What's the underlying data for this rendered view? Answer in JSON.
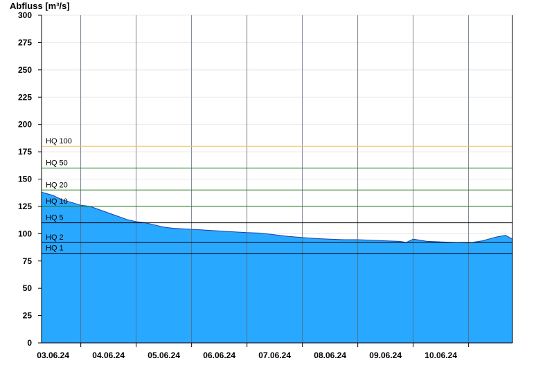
{
  "chart_data": {
    "type": "area",
    "ylabel": "Abfluss [m³/s]",
    "ylim": [
      0,
      300
    ],
    "yticks": [
      0,
      25,
      50,
      75,
      100,
      125,
      150,
      175,
      200,
      225,
      250,
      275,
      300
    ],
    "xlim": [
      "2024-06-02T07:00",
      "2024-06-10T19:00"
    ],
    "xtick_labels": [
      "03.06.24",
      "04.06.24",
      "05.06.24",
      "06.06.24",
      "07.06.24",
      "08.06.24",
      "09.06.24",
      "10.06.24"
    ],
    "grid": true,
    "fill_color": "#29a8ff",
    "line_color": "#1c3fa8",
    "series": [
      {
        "x": [
          "2024-06-02T07:00",
          "2024-06-02T12:00",
          "2024-06-02T16:00",
          "2024-06-02T21:00",
          "2024-06-03T00:00",
          "2024-06-03T04:00",
          "2024-06-03T08:00",
          "2024-06-03T12:00",
          "2024-06-03T16:00",
          "2024-06-03T20:00",
          "2024-06-04T00:00",
          "2024-06-04T04:00",
          "2024-06-04T08:00",
          "2024-06-04T12:00",
          "2024-06-04T16:00",
          "2024-06-04T20:00",
          "2024-06-05T00:00",
          "2024-06-05T04:00",
          "2024-06-05T08:00",
          "2024-06-05T12:00",
          "2024-06-05T16:00",
          "2024-06-05T20:00",
          "2024-06-06T00:00",
          "2024-06-06T06:00",
          "2024-06-06T12:00",
          "2024-06-06T18:00",
          "2024-06-07T00:00",
          "2024-06-07T06:00",
          "2024-06-07T12:00",
          "2024-06-07T18:00",
          "2024-06-08T00:00",
          "2024-06-08T06:00",
          "2024-06-08T12:00",
          "2024-06-08T18:00",
          "2024-06-08T21:00",
          "2024-06-09T00:00",
          "2024-06-09T06:00",
          "2024-06-09T12:00",
          "2024-06-09T18:00",
          "2024-06-10T00:00",
          "2024-06-10T06:00",
          "2024-06-10T12:00",
          "2024-06-10T16:00",
          "2024-06-10T19:00"
        ],
        "y": [
          138,
          135,
          131,
          128,
          126,
          125,
          122,
          119,
          116,
          113,
          111,
          110,
          108,
          106,
          105,
          104.5,
          104,
          103.5,
          103,
          102.5,
          102,
          101.5,
          101,
          100.5,
          99,
          97.5,
          96.5,
          95.5,
          95,
          94.5,
          94.5,
          94,
          93.5,
          93,
          92,
          95,
          93,
          92.5,
          92,
          91.5,
          93.5,
          97,
          98.5,
          95
        ]
      }
    ],
    "reference_lines": [
      {
        "label": "HQ 100",
        "value": 180,
        "color": "#f0c060"
      },
      {
        "label": "HQ 50",
        "value": 160,
        "color": "#1a7a1a"
      },
      {
        "label": "HQ 20",
        "value": 140,
        "color": "#1a7a1a"
      },
      {
        "label": "HQ 10",
        "value": 125,
        "color": "#1a7a1a"
      },
      {
        "label": "HQ 5",
        "value": 110,
        "color": "#000000"
      },
      {
        "label": "HQ 2",
        "value": 92,
        "color": "#000000"
      },
      {
        "label": "HQ 1",
        "value": 82,
        "color": "#000000"
      }
    ]
  }
}
